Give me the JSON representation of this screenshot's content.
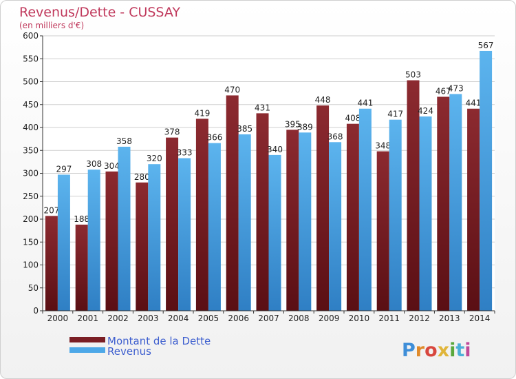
{
  "chart_data": {
    "type": "bar",
    "title": "Revenus/Dette - CUSSAY",
    "subtitle": "(en milliers d'€)",
    "categories": [
      "2000",
      "2001",
      "2002",
      "2003",
      "2004",
      "2005",
      "2006",
      "2007",
      "2008",
      "2009",
      "2010",
      "2011",
      "2012",
      "2013",
      "2014"
    ],
    "series": [
      {
        "name": "Montant de la Dette",
        "values": [
          207,
          188,
          304,
          280,
          378,
          419,
          470,
          431,
          395,
          448,
          408,
          348,
          503,
          467,
          441
        ],
        "color": "#7a1e24"
      },
      {
        "name": "Revenus",
        "values": [
          297,
          308,
          358,
          320,
          333,
          366,
          385,
          340,
          389,
          368,
          441,
          417,
          424,
          473,
          567
        ],
        "color": "#4da8e8"
      }
    ],
    "ylim": [
      0,
      600
    ],
    "yticks": [
      0,
      50,
      100,
      150,
      200,
      250,
      300,
      350,
      400,
      450,
      500,
      550,
      600
    ],
    "grid": true,
    "legend_position": "bottom-left"
  },
  "logo": {
    "text": "Proxiti",
    "letter_colors": [
      "#3e8ed8",
      "#e08a2a",
      "#d8473e",
      "#e0b53a",
      "#5aa83c",
      "#4cb0d8",
      "#c04a9a"
    ]
  }
}
